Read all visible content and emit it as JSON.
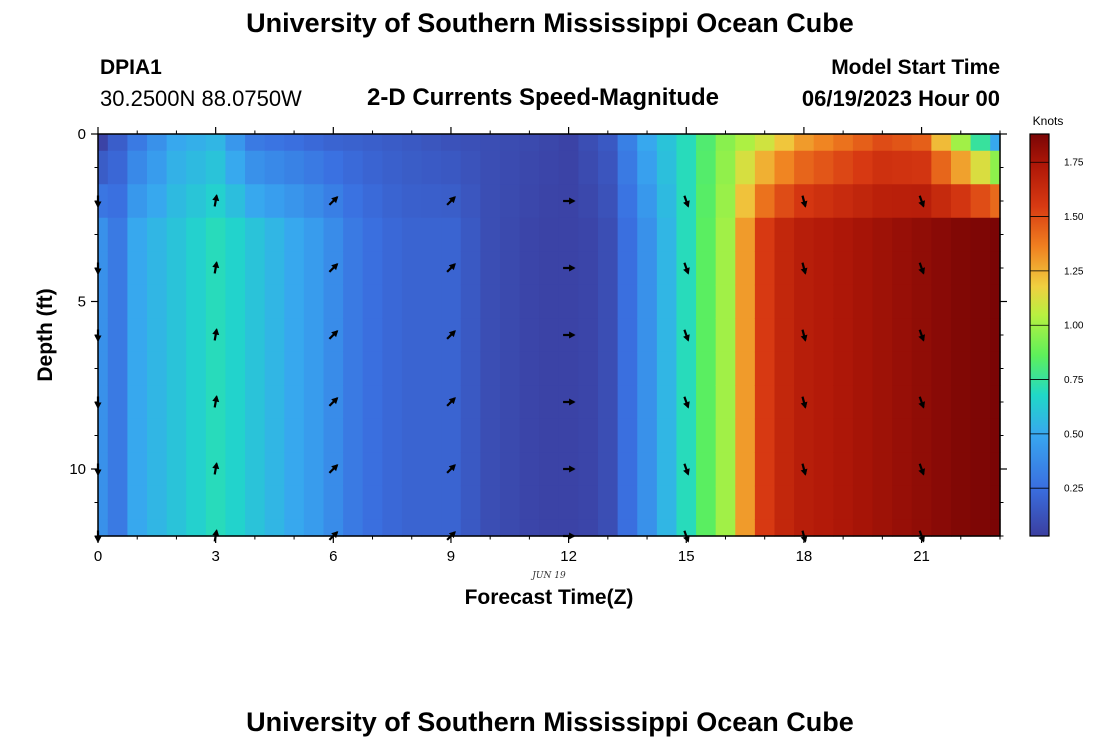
{
  "page": {
    "title_top": "University of Southern Mississippi Ocean Cube",
    "title_bottom": "University of Southern Mississippi Ocean Cube",
    "station": "DPIA1",
    "coords": "30.2500N  88.0750W",
    "subtitle": "2-D Currents Speed-Magnitude",
    "model_start_label": "Model Start Time",
    "model_start_value": "06/19/2023 Hour 00"
  },
  "chart_data": {
    "type": "heatmap",
    "xlabel": "Forecast Time(Z)",
    "ylabel": "Depth (ft)",
    "date_label": "JUN 19",
    "xlim": [
      0,
      23
    ],
    "ylim": [
      0,
      12
    ],
    "x_ticks": [
      0,
      3,
      6,
      9,
      12,
      15,
      18,
      21
    ],
    "y_ticks": [
      0,
      5,
      10
    ],
    "colorbar": {
      "label": "Knots",
      "range": [
        0.03,
        1.88
      ],
      "ticks": [
        "0.25",
        "0.50",
        "0.75",
        "1.00",
        "1.25",
        "1.50",
        "1.75"
      ],
      "tick_values": [
        0.25,
        0.5,
        0.75,
        1.0,
        1.25,
        1.5,
        1.75
      ]
    },
    "time_columns": [
      0,
      0.5,
      1,
      1.5,
      2,
      2.5,
      3,
      3.5,
      4,
      4.5,
      5,
      5.5,
      6,
      6.5,
      7,
      7.5,
      8,
      8.5,
      9,
      9.5,
      10,
      10.5,
      11,
      11.5,
      12,
      12.5,
      13,
      13.5,
      14,
      14.5,
      15,
      15.5,
      16,
      16.5,
      17,
      17.5,
      18,
      18.5,
      19,
      19.5,
      20,
      20.5,
      21,
      21.5,
      22,
      22.5,
      23
    ],
    "depth_rows": [
      0,
      1,
      2,
      3,
      4,
      5,
      6,
      7,
      8,
      9,
      10,
      11,
      12
    ],
    "speed_profile": [
      0.4,
      0.3,
      0.5,
      0.55,
      0.6,
      0.65,
      0.7,
      0.66,
      0.6,
      0.55,
      0.5,
      0.45,
      0.38,
      0.3,
      0.25,
      0.22,
      0.2,
      0.2,
      0.2,
      0.15,
      0.1,
      0.08,
      0.06,
      0.05,
      0.05,
      0.06,
      0.1,
      0.25,
      0.4,
      0.55,
      0.7,
      0.85,
      1.0,
      1.3,
      1.55,
      1.65,
      1.7,
      1.72,
      1.74,
      1.76,
      1.78,
      1.8,
      1.82,
      1.84,
      1.86,
      1.87,
      1.88
    ],
    "surface_speed_by_hour": [
      0.05,
      0.3,
      0.5,
      0.55,
      0.3,
      0.25,
      0.2,
      0.18,
      0.15,
      0.12,
      0.1,
      0.08,
      0.05,
      0.15,
      0.5,
      0.7,
      0.95,
      1.1,
      1.3,
      1.4,
      1.5,
      1.45,
      1.0,
      0.5
    ],
    "arrows": {
      "times": [
        0,
        3,
        6,
        9,
        12,
        15,
        18,
        21
      ],
      "depths": [
        2,
        4,
        6,
        8,
        10,
        12
      ],
      "directions_deg": [
        180,
        10,
        45,
        45,
        90,
        160,
        165,
        160
      ]
    }
  }
}
